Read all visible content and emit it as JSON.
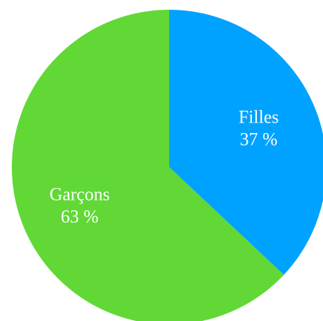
{
  "chart_data": {
    "type": "pie",
    "title": "",
    "slices": [
      {
        "label": "Filles",
        "value": 37,
        "value_label": "37 %",
        "color": "#00A2FF"
      },
      {
        "label": "Garçons",
        "value": 63,
        "value_label": "63 %",
        "color": "#61D836"
      }
    ],
    "start_angle_deg": 0,
    "direction": "clockwise",
    "legend": "none"
  }
}
